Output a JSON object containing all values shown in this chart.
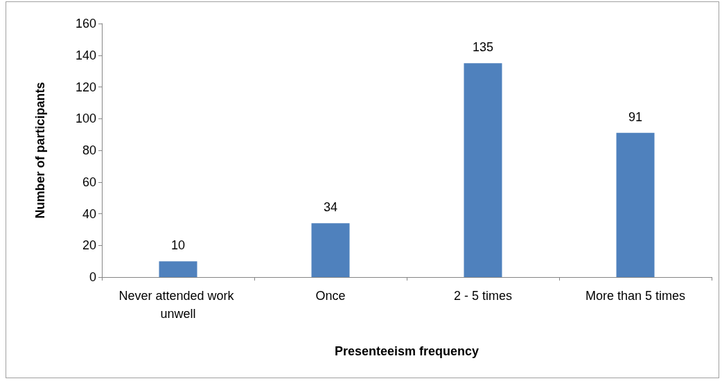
{
  "chart_data": {
    "type": "bar",
    "xlabel": "Presenteeism frequency",
    "ylabel": "Number of participants",
    "categories": [
      "Never attended work unwell",
      "Once",
      "2 - 5 times",
      "More than 5 times"
    ],
    "values": [
      10,
      34,
      135,
      91
    ],
    "color": "#4f81bd",
    "ylim": [
      0,
      160
    ],
    "yticks": [
      0,
      20,
      40,
      60,
      80,
      100,
      120,
      140,
      160
    ],
    "grid": false,
    "data_labels": true
  }
}
